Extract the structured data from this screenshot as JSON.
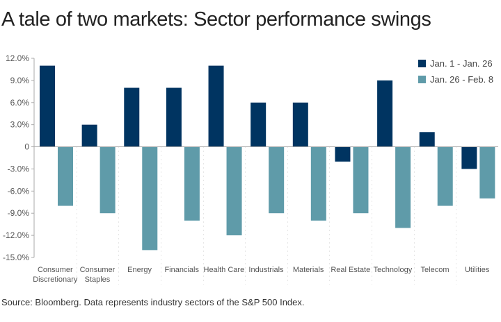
{
  "title": "A tale of two markets: Sector performance swings",
  "source": "Source: Bloomberg. Data represents industry sectors of the S&P 500 Index.",
  "colors": {
    "series1": "#003461",
    "series2": "#5f9ba9",
    "axis": "#aaaaaa",
    "grid": "#cccccc"
  },
  "chart_data": {
    "type": "bar",
    "title": "A tale of two markets: Sector performance swings",
    "xlabel": "",
    "ylabel": "",
    "ylim": [
      -15,
      12
    ],
    "yticks": [
      12,
      9,
      6,
      3,
      0,
      -3,
      -6,
      -9,
      -12,
      -15
    ],
    "ytick_labels": [
      "12.0%",
      "9.0%",
      "6.0%",
      "3.0%",
      "0",
      "-3.0%",
      "-6.0%",
      "-9.0%",
      "-12.0%",
      "-15.0%"
    ],
    "categories": [
      [
        "Consumer",
        "Discretionary"
      ],
      [
        "Consumer",
        "Staples"
      ],
      [
        "Energy"
      ],
      [
        "Financials"
      ],
      [
        "Health Care"
      ],
      [
        "Industrials"
      ],
      [
        "Materials"
      ],
      [
        "Real Estate"
      ],
      [
        "Technology"
      ],
      [
        "Telecom"
      ],
      [
        "Utilities"
      ]
    ],
    "series": [
      {
        "name": "Jan. 1 - Jan. 26",
        "values": [
          11,
          3,
          8,
          8,
          11,
          6,
          6,
          -2,
          9,
          2,
          -3
        ]
      },
      {
        "name": "Jan. 26 - Feb. 8",
        "values": [
          -8,
          -9,
          -14,
          -10,
          -12,
          -9,
          -10,
          -9,
          -11,
          -8,
          -7
        ]
      }
    ],
    "legend": "top-right",
    "grid": false
  }
}
